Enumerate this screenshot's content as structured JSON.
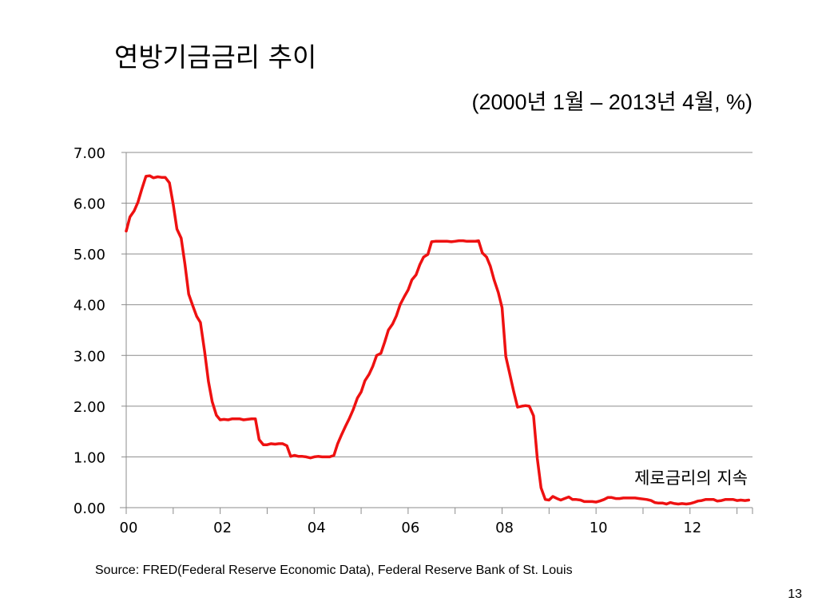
{
  "slide": {
    "title": "연방기금금리 추이",
    "subtitle": "(2000년 1월 – 2013년 4월, %)",
    "source": "Source:  FRED(Federal Reserve Economic Data), Federal Reserve Bank of St. Louis",
    "page_number": "13"
  },
  "chart_data": {
    "type": "line",
    "title": "연방기금금리 추이",
    "subtitle": "(2000년 1월 – 2013년 4월, %)",
    "xlabel": "",
    "ylabel": "",
    "ylim": [
      0,
      7
    ],
    "xlim": [
      2000.0,
      2013.33
    ],
    "grid": "horizontal",
    "legend": "none",
    "y_ticks": [
      "0.00",
      "1.00",
      "2.00",
      "3.00",
      "4.00",
      "5.00",
      "6.00",
      "7.00"
    ],
    "x_ticks": [
      {
        "value": 2000,
        "label": "00"
      },
      {
        "value": 2002,
        "label": "02"
      },
      {
        "value": 2004,
        "label": "04"
      },
      {
        "value": 2006,
        "label": "06"
      },
      {
        "value": 2008,
        "label": "08"
      },
      {
        "value": 2010,
        "label": "10"
      },
      {
        "value": 2012,
        "label": "12"
      }
    ],
    "annotation": "제로금리의 지속",
    "series": [
      {
        "color": "#ee1111",
        "x": [
          2000.0,
          2000.08,
          2000.17,
          2000.25,
          2000.33,
          2000.42,
          2000.5,
          2000.58,
          2000.67,
          2000.75,
          2000.83,
          2000.92,
          2001.0,
          2001.08,
          2001.17,
          2001.25,
          2001.33,
          2001.42,
          2001.5,
          2001.58,
          2001.67,
          2001.75,
          2001.83,
          2001.92,
          2002.0,
          2002.08,
          2002.17,
          2002.25,
          2002.33,
          2002.42,
          2002.5,
          2002.58,
          2002.67,
          2002.75,
          2002.83,
          2002.92,
          2003.0,
          2003.08,
          2003.17,
          2003.25,
          2003.33,
          2003.42,
          2003.5,
          2003.58,
          2003.67,
          2003.75,
          2003.83,
          2003.92,
          2004.0,
          2004.08,
          2004.17,
          2004.25,
          2004.33,
          2004.42,
          2004.5,
          2004.58,
          2004.67,
          2004.75,
          2004.83,
          2004.92,
          2005.0,
          2005.08,
          2005.17,
          2005.25,
          2005.33,
          2005.42,
          2005.5,
          2005.58,
          2005.67,
          2005.75,
          2005.83,
          2005.92,
          2006.0,
          2006.08,
          2006.17,
          2006.25,
          2006.33,
          2006.42,
          2006.5,
          2006.58,
          2006.67,
          2006.75,
          2006.83,
          2006.92,
          2007.0,
          2007.08,
          2007.17,
          2007.25,
          2007.33,
          2007.42,
          2007.5,
          2007.58,
          2007.67,
          2007.75,
          2007.83,
          2007.92,
          2008.0,
          2008.08,
          2008.17,
          2008.25,
          2008.33,
          2008.42,
          2008.5,
          2008.58,
          2008.67,
          2008.75,
          2008.83,
          2008.92,
          2009.0,
          2009.08,
          2009.17,
          2009.25,
          2009.33,
          2009.42,
          2009.5,
          2009.58,
          2009.67,
          2009.75,
          2009.83,
          2009.92,
          2010.0,
          2010.08,
          2010.17,
          2010.25,
          2010.33,
          2010.42,
          2010.5,
          2010.58,
          2010.67,
          2010.75,
          2010.83,
          2010.92,
          2011.0,
          2011.08,
          2011.17,
          2011.25,
          2011.33,
          2011.42,
          2011.5,
          2011.58,
          2011.67,
          2011.75,
          2011.83,
          2011.92,
          2012.0,
          2012.08,
          2012.17,
          2012.25,
          2012.33,
          2012.42,
          2012.5,
          2012.58,
          2012.67,
          2012.75,
          2012.83,
          2012.92,
          2013.0,
          2013.08,
          2013.17,
          2013.25
        ],
        "values": [
          5.45,
          5.73,
          5.85,
          6.02,
          6.27,
          6.53,
          6.54,
          6.5,
          6.52,
          6.51,
          6.51,
          6.4,
          5.98,
          5.49,
          5.31,
          4.8,
          4.21,
          3.97,
          3.77,
          3.65,
          3.07,
          2.49,
          2.09,
          1.82,
          1.73,
          1.74,
          1.73,
          1.75,
          1.75,
          1.75,
          1.73,
          1.74,
          1.75,
          1.75,
          1.34,
          1.24,
          1.24,
          1.26,
          1.25,
          1.26,
          1.26,
          1.22,
          1.01,
          1.03,
          1.01,
          1.01,
          1.0,
          0.98,
          1.0,
          1.01,
          1.0,
          1.0,
          1.0,
          1.03,
          1.26,
          1.43,
          1.61,
          1.76,
          1.93,
          2.16,
          2.28,
          2.5,
          2.63,
          2.79,
          3.0,
          3.04,
          3.26,
          3.5,
          3.62,
          3.78,
          4.0,
          4.16,
          4.29,
          4.49,
          4.59,
          4.79,
          4.94,
          4.99,
          5.24,
          5.25,
          5.25,
          5.25,
          5.25,
          5.24,
          5.25,
          5.26,
          5.26,
          5.25,
          5.25,
          5.25,
          5.26,
          5.02,
          4.94,
          4.76,
          4.49,
          4.24,
          3.94,
          2.98,
          2.61,
          2.28,
          1.98,
          2.0,
          2.01,
          2.0,
          1.81,
          0.97,
          0.39,
          0.16,
          0.15,
          0.22,
          0.18,
          0.15,
          0.18,
          0.21,
          0.16,
          0.16,
          0.15,
          0.12,
          0.12,
          0.12,
          0.11,
          0.13,
          0.16,
          0.2,
          0.2,
          0.18,
          0.18,
          0.19,
          0.19,
          0.19,
          0.19,
          0.18,
          0.17,
          0.16,
          0.14,
          0.1,
          0.09,
          0.09,
          0.07,
          0.1,
          0.08,
          0.07,
          0.08,
          0.07,
          0.08,
          0.1,
          0.13,
          0.14,
          0.16,
          0.16,
          0.16,
          0.13,
          0.14,
          0.16,
          0.16,
          0.16,
          0.14,
          0.15,
          0.14,
          0.15
        ]
      }
    ]
  }
}
